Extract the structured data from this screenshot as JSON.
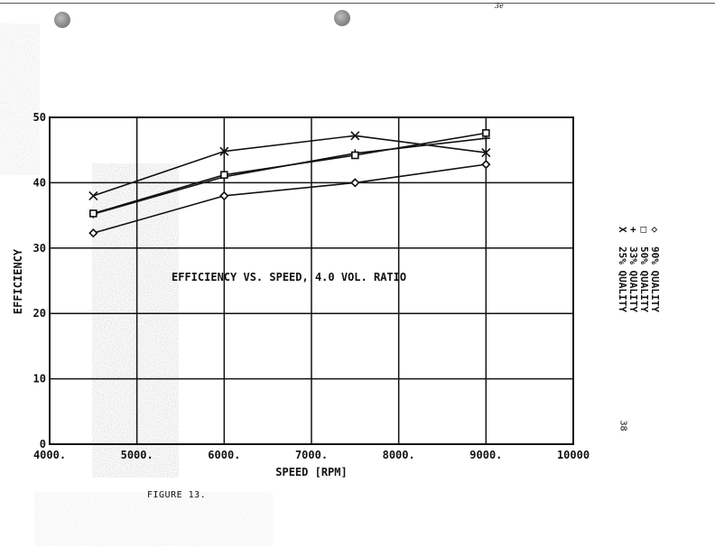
{
  "page": {
    "page_mark": "3e",
    "figure_caption": "FIGURE 13.",
    "page_number": "38"
  },
  "chart_data": {
    "type": "line",
    "title": "EFFICIENCY VS. SPEED, 4.0 VOL. RATIO",
    "xlabel": "SPEED [RPM]",
    "ylabel": "EFFICIENCY",
    "xlim": [
      4000,
      10000
    ],
    "ylim": [
      0,
      50
    ],
    "x_ticks": [
      4000,
      5000,
      6000,
      7000,
      8000,
      9000,
      10000
    ],
    "x_tick_labels": [
      "4000.",
      "5000.",
      "6000.",
      "7000.",
      "8000.",
      "9000.",
      "10000"
    ],
    "y_ticks": [
      0,
      10,
      20,
      30,
      40,
      50
    ],
    "y_tick_labels": [
      "0",
      "10",
      "20",
      "30",
      "40",
      "50"
    ],
    "grid": true,
    "legend_position": "right-vertical",
    "x": [
      4500,
      6000,
      7500,
      9000
    ],
    "series": [
      {
        "name": "25% QUALITY",
        "marker": "x",
        "marker_glyph": "X",
        "values": [
          38.0,
          44.8,
          47.2,
          44.6
        ]
      },
      {
        "name": "33% QUALITY",
        "marker": "plus",
        "marker_glyph": "+",
        "values": [
          35.2,
          40.9,
          44.5,
          46.8
        ]
      },
      {
        "name": "50% QUALITY",
        "marker": "square",
        "marker_glyph": "□",
        "values": [
          35.3,
          41.2,
          44.2,
          47.6
        ]
      },
      {
        "name": "90% QUALITY",
        "marker": "diamond",
        "marker_glyph": "◇",
        "values": [
          32.3,
          38.0,
          40.0,
          42.8
        ]
      }
    ]
  }
}
